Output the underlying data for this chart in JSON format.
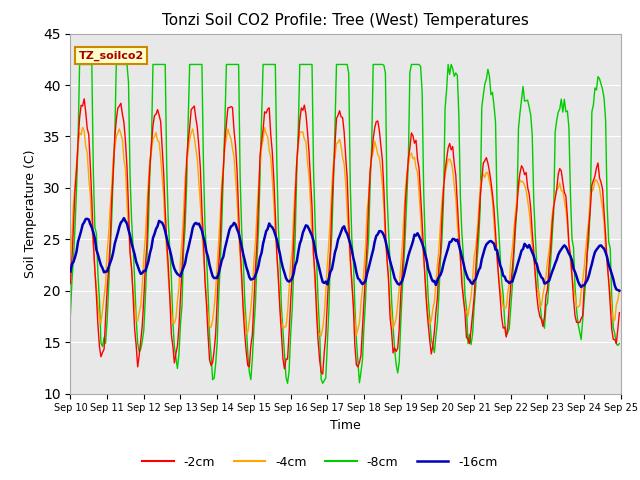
{
  "title": "Tonzi Soil CO2 Profile: Tree (West) Temperatures",
  "xlabel": "Time",
  "ylabel": "Soil Temperature (C)",
  "ylim": [
    10,
    45
  ],
  "yticks": [
    10,
    15,
    20,
    25,
    30,
    35,
    40,
    45
  ],
  "legend_label": "TZ_soilco2",
  "series_labels": [
    "-2cm",
    "-4cm",
    "-8cm",
    "-16cm"
  ],
  "series_colors": [
    "#ff0000",
    "#ffa500",
    "#00cc00",
    "#0000bb"
  ],
  "x_tick_labels": [
    "Sep 10",
    "Sep 11",
    "Sep 12",
    "Sep 13",
    "Sep 14",
    "Sep 15",
    "Sep 16",
    "Sep 17",
    "Sep 18",
    "Sep 19",
    "Sep 20",
    "Sep 21",
    "Sep 22",
    "Sep 23",
    "Sep 24",
    "Sep 25"
  ],
  "background_color": "#e8e8e8",
  "fig_bg_color": "#ffffff",
  "legend_box_color": "#ffffcc",
  "legend_box_edge": "#cc8800",
  "grid_color": "#ffffff"
}
